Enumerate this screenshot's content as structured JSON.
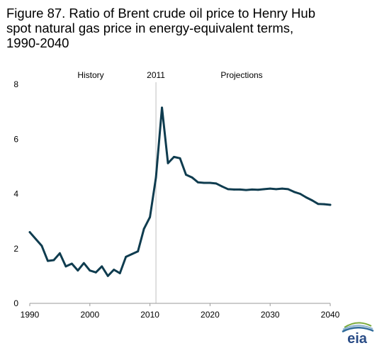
{
  "title_lines": [
    "Figure 87. Ratio of Brent crude oil price to Henry Hub",
    "spot natural gas price in energy-equivalent terms,",
    "1990-2040"
  ],
  "chart_data": {
    "type": "line",
    "title": "Figure 87. Ratio of Brent crude oil price to Henry Hub spot natural gas price in energy-equivalent terms, 1990-2040",
    "xlabel": "",
    "ylabel": "",
    "xlim": [
      1990,
      2040
    ],
    "ylim": [
      0,
      8
    ],
    "x_ticks": [
      "1990",
      "2000",
      "2010",
      "2020",
      "2030",
      "2040"
    ],
    "y_ticks": [
      "0",
      "2",
      "4",
      "6",
      "8"
    ],
    "grid": false,
    "legend": "none",
    "annotations": {
      "history": "History",
      "divider_year": "2011",
      "projections": "Projections",
      "divider_x": 2011
    },
    "series": [
      {
        "color": "#0f3c4f",
        "x": [
          1990,
          1991,
          1992,
          1993,
          1994,
          1995,
          1996,
          1997,
          1998,
          1999,
          2000,
          2001,
          2002,
          2003,
          2004,
          2005,
          2006,
          2007,
          2008,
          2009,
          2010,
          2011,
          2012,
          2013,
          2014,
          2015,
          2016,
          2017,
          2018,
          2019,
          2020,
          2021,
          2022,
          2023,
          2024,
          2025,
          2026,
          2027,
          2028,
          2029,
          2030,
          2031,
          2032,
          2033,
          2034,
          2035,
          2036,
          2037,
          2038,
          2039,
          2040
        ],
        "values": [
          2.6,
          2.35,
          2.1,
          1.55,
          1.58,
          1.83,
          1.35,
          1.45,
          1.2,
          1.47,
          1.2,
          1.13,
          1.35,
          1.0,
          1.23,
          1.1,
          1.7,
          1.8,
          1.9,
          2.72,
          3.15,
          4.6,
          7.15,
          5.12,
          5.35,
          5.3,
          4.7,
          4.6,
          4.42,
          4.4,
          4.4,
          4.38,
          4.27,
          4.17,
          4.16,
          4.16,
          4.14,
          4.16,
          4.15,
          4.17,
          4.19,
          4.17,
          4.19,
          4.17,
          4.07,
          4.0,
          3.87,
          3.76,
          3.63,
          3.62,
          3.6
        ]
      }
    ]
  },
  "logo": {
    "text": "eia",
    "colors": {
      "text": "#2a4c86",
      "swoosh_dark": "#2f6b9a",
      "swoosh_light": "#8fb4cf",
      "swoosh_green": "#7aaa3c"
    }
  },
  "colors": {
    "line": "#0f3c4f",
    "axis": "#9a9a9a",
    "divider": "#bfbfbf",
    "text": "#000000"
  }
}
